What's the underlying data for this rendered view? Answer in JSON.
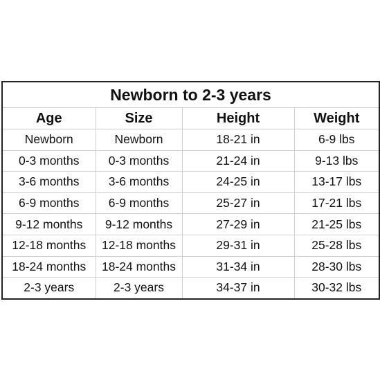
{
  "table": {
    "title": "Newborn to 2-3 years",
    "header": [
      "Age",
      "Size",
      "Height",
      "Weight"
    ],
    "rows": [
      [
        "Newborn",
        "Newborn",
        "18-21 in",
        "6-9 lbs"
      ],
      [
        "0-3 months",
        "0-3 months",
        "21-24 in",
        "9-13 lbs"
      ],
      [
        "3-6 months",
        "3-6 months",
        "24-25 in",
        "13-17 lbs"
      ],
      [
        "6-9 months",
        "6-9 months",
        "25-27 in",
        "17-21 lbs"
      ],
      [
        "9-12 months",
        "9-12 months",
        "27-29 in",
        "21-25 lbs"
      ],
      [
        "12-18 months",
        "12-18 months",
        "29-31 in",
        "25-28 lbs"
      ],
      [
        "18-24 months",
        "18-24 months",
        "31-34 in",
        "28-30 lbs"
      ],
      [
        "2-3 years",
        "2-3 years",
        "34-37 in",
        "30-32 lbs"
      ]
    ]
  }
}
